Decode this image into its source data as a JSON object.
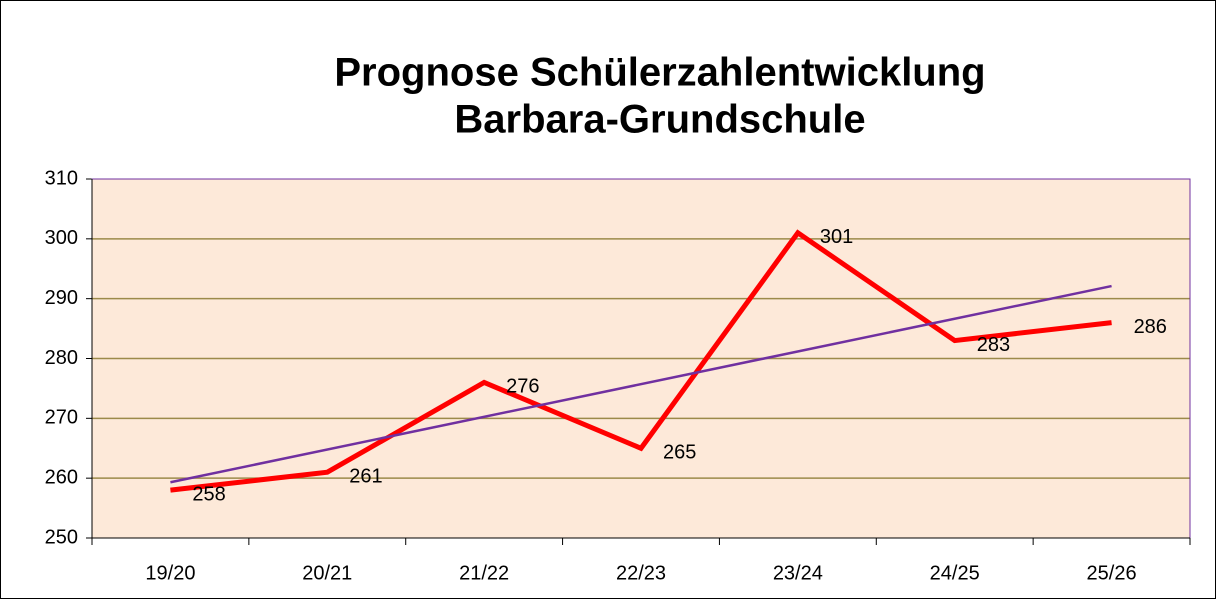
{
  "chart_data": {
    "type": "line",
    "title": [
      "Prognose Schülerzahlentwicklung",
      "Barbara-Grundschule"
    ],
    "categories": [
      "19/20",
      "20/21",
      "21/22",
      "22/23",
      "23/24",
      "24/25",
      "25/26"
    ],
    "series": [
      {
        "color": "#ff0000",
        "values": [
          258,
          261,
          276,
          265,
          301,
          283,
          286
        ]
      }
    ],
    "ylim": [
      250,
      310
    ],
    "yticks": [
      250,
      260,
      270,
      280,
      290,
      300,
      310
    ],
    "grid": true,
    "grid_color": "#9c8a4a",
    "plot_background": "#fde9d9",
    "plot_border": "#7030a0",
    "trendline": "linear",
    "trendline_color": "#7030a0",
    "data_labels": true
  }
}
